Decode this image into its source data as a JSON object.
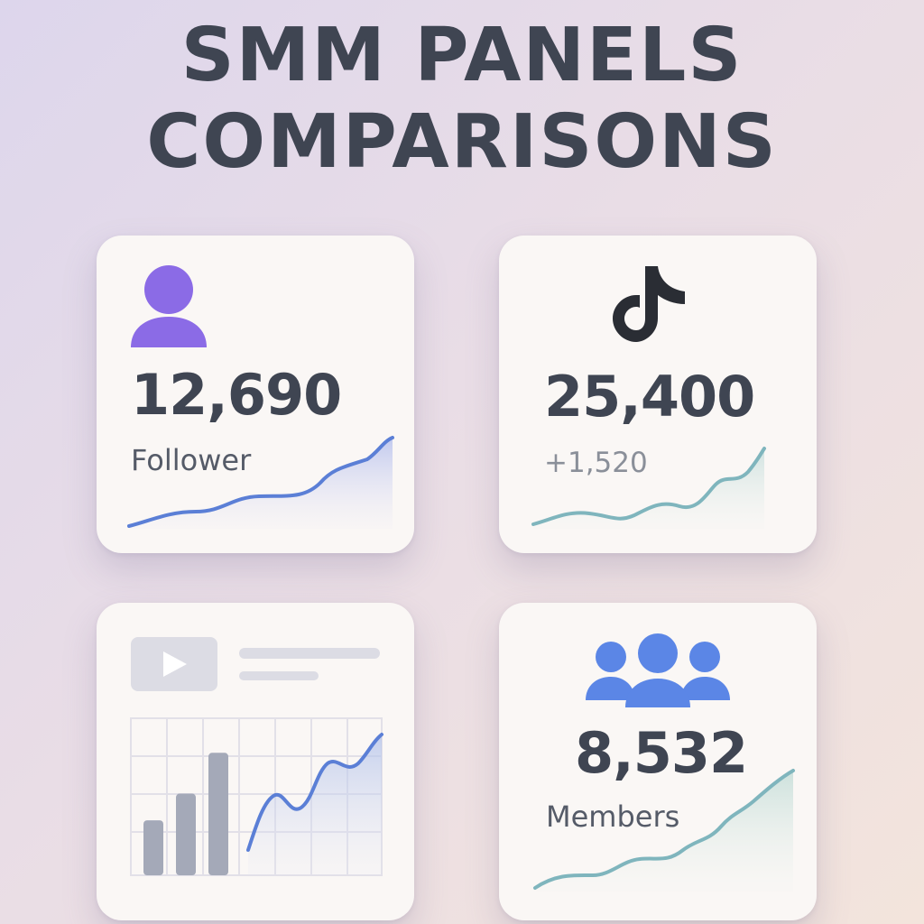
{
  "title": {
    "line1": "SMM PANELS",
    "line2": "COMPARISONS"
  },
  "cards": {
    "followers": {
      "icon": "user-icon",
      "value": "12,690",
      "label": "Follower",
      "accent": "#8b6be6",
      "line_color": "#5b7fd6"
    },
    "tiktok": {
      "icon": "tiktok-logo-icon",
      "value": "25,400",
      "delta": "+1,520",
      "line_color": "#7fb5bd"
    },
    "youtube": {
      "icon": "video-play-icon",
      "bar_values": [
        0.35,
        0.52,
        0.78
      ],
      "line_color": "#5b7fd6"
    },
    "members": {
      "icon": "group-icon",
      "value": "8,532",
      "label": "Members",
      "accent": "#5b86e6",
      "line_color": "#7fb5bd"
    }
  }
}
